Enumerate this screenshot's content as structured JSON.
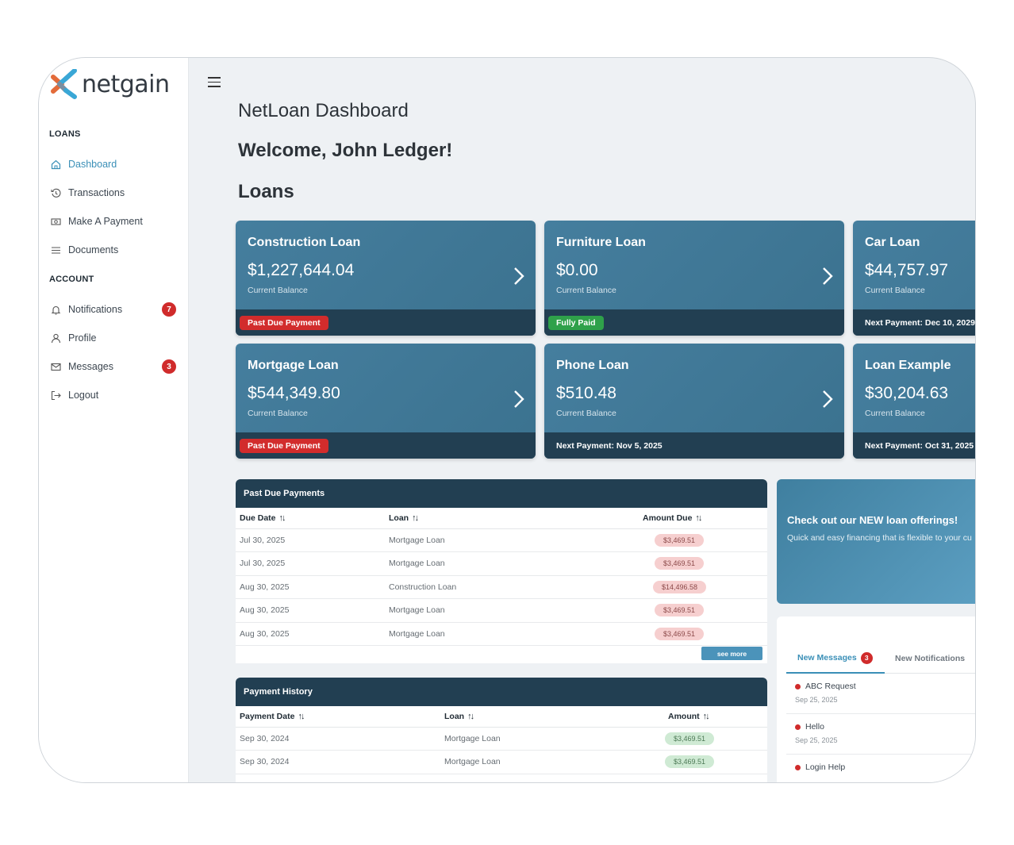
{
  "brand": {
    "name": "netgain"
  },
  "sidebar": {
    "loans_title": "LOANS",
    "account_title": "ACCOUNT",
    "loans_items": [
      {
        "label": "Dashboard",
        "icon": "home-icon",
        "active": true
      },
      {
        "label": "Transactions",
        "icon": "history-icon"
      },
      {
        "label": "Make A Payment",
        "icon": "cash-icon"
      },
      {
        "label": "Documents",
        "icon": "list-icon"
      }
    ],
    "account_items": [
      {
        "label": "Notifications",
        "icon": "bell-icon",
        "badge": "7"
      },
      {
        "label": "Profile",
        "icon": "user-icon"
      },
      {
        "label": "Messages",
        "icon": "mail-icon",
        "badge": "3"
      },
      {
        "label": "Logout",
        "icon": "logout-icon"
      }
    ]
  },
  "header": {
    "title": "NetLoan Dashboard",
    "welcome": "Welcome, John Ledger!",
    "loans_heading": "Loans"
  },
  "loans": [
    {
      "name": "Construction Loan",
      "amount": "$1,227,644.04",
      "caption": "Current Balance",
      "footer": "Past Due Payment",
      "footer_type": "red"
    },
    {
      "name": "Furniture Loan",
      "amount": "$0.00",
      "caption": "Current Balance",
      "footer": "Fully Paid",
      "footer_type": "green"
    },
    {
      "name": "Car Loan",
      "amount": "$44,757.97",
      "caption": "Current Balance",
      "footer": "Next Payment: Dec 10, 2029",
      "footer_type": "text"
    },
    {
      "name": "Mortgage Loan",
      "amount": "$544,349.80",
      "caption": "Current Balance",
      "footer": "Past Due Payment",
      "footer_type": "red"
    },
    {
      "name": "Phone Loan",
      "amount": "$510.48",
      "caption": "Current Balance",
      "footer": "Next Payment: Nov 5, 2025",
      "footer_type": "text"
    },
    {
      "name": "Loan Example",
      "amount": "$30,204.63",
      "caption": "Current Balance",
      "footer": "Next Payment: Oct 31, 2025",
      "footer_type": "text"
    }
  ],
  "past_due": {
    "title": "Past Due Payments",
    "columns": [
      "Due Date",
      "Loan",
      "Amount Due"
    ],
    "rows": [
      [
        "Jul 30, 2025",
        "Mortgage Loan",
        "$3,469.51"
      ],
      [
        "Jul 30, 2025",
        "Mortgage Loan",
        "$3,469.51"
      ],
      [
        "Aug 30, 2025",
        "Construction Loan",
        "$14,496.58"
      ],
      [
        "Aug 30, 2025",
        "Mortgage Loan",
        "$3,469.51"
      ],
      [
        "Aug 30, 2025",
        "Mortgage Loan",
        "$3,469.51"
      ]
    ],
    "see_more": "see more"
  },
  "payment_history": {
    "title": "Payment History",
    "columns": [
      "Payment Date",
      "Loan",
      "Amount"
    ],
    "rows": [
      [
        "Sep 30, 2024",
        "Mortgage Loan",
        "$3,469.51"
      ],
      [
        "Sep 30, 2024",
        "Mortgage Loan",
        "$3,469.51"
      ]
    ]
  },
  "promo": {
    "title": "Check out our NEW loan offerings!",
    "subtitle": "Quick and easy financing that is flexible to your cu"
  },
  "messages_panel": {
    "tab_messages": "New Messages",
    "tab_messages_count": "3",
    "tab_notifications": "New Notifications",
    "items": [
      {
        "subject": "ABC Request",
        "date": "Sep 25, 2025"
      },
      {
        "subject": "Hello",
        "date": "Sep 25, 2025"
      },
      {
        "subject": "Login Help",
        "date": ""
      }
    ]
  },
  "colors": {
    "card": "#427a9a",
    "card_footer": "#223f52",
    "accent": "#3a8fb7",
    "danger": "#d22c2c",
    "success": "#2fa14a"
  }
}
